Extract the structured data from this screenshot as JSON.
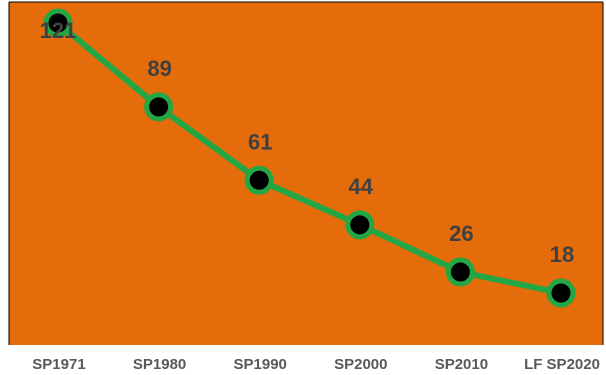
{
  "chart_data": {
    "type": "line",
    "categories": [
      "SP1971",
      "SP1980",
      "SP1990",
      "SP2000",
      "SP2010",
      "LF SP2020"
    ],
    "values": [
      121,
      89,
      61,
      44,
      26,
      18
    ],
    "data_labels": [
      "121",
      "89",
      "61",
      "44",
      "26",
      "18"
    ],
    "title": "",
    "xlabel": "",
    "ylabel": "",
    "grid": false,
    "colors": {
      "plot_background": "#E46C0A",
      "line": "#24A644",
      "marker_fill": "#000000",
      "marker_stroke": "#24A644",
      "data_label": "#404040",
      "tick_label": "#595959"
    }
  }
}
